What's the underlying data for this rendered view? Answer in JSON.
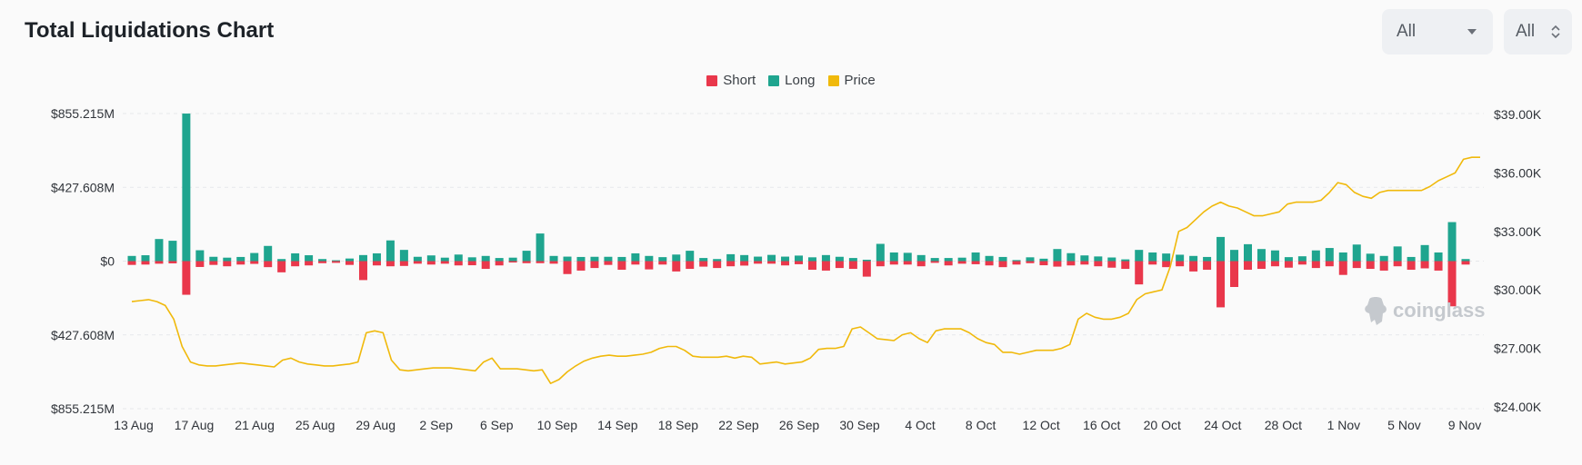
{
  "header": {
    "title": "Total Liquidations Chart",
    "range_select": "All",
    "coin_select": "All"
  },
  "legend": [
    {
      "label": "Short",
      "color": "#e9374b"
    },
    {
      "label": "Long",
      "color": "#1fa58f"
    },
    {
      "label": "Price",
      "color": "#f0b90b"
    }
  ],
  "watermark": "coinglass",
  "chart_data": {
    "type": "bar",
    "x_tick_labels": [
      "13 Aug",
      "17 Aug",
      "21 Aug",
      "25 Aug",
      "29 Aug",
      "2 Sep",
      "6 Sep",
      "10 Sep",
      "14 Sep",
      "18 Sep",
      "22 Sep",
      "26 Sep",
      "30 Sep",
      "4 Oct",
      "8 Oct",
      "12 Oct",
      "16 Oct",
      "20 Oct",
      "24 Oct",
      "28 Oct",
      "1 Nov",
      "5 Nov",
      "9 Nov"
    ],
    "y_left_tick_labels": [
      "$855.215M",
      "$427.608M",
      "$0",
      "$427.608M",
      "$855.215M"
    ],
    "y_left_range_musd": [
      -855.215,
      855.215
    ],
    "y_right_tick_labels": [
      "$39.00K",
      "$36.00K",
      "$33.00K",
      "$30.00K",
      "$27.00K",
      "$24.00K"
    ],
    "y_right_range_usd": [
      24000,
      39000
    ],
    "grid": true,
    "legend_position": "top-center",
    "series": [
      {
        "name": "Long",
        "color": "#1fa58f",
        "values": [
          30,
          34,
          128,
          118,
          855,
          63,
          25,
          20,
          24,
          47,
          88,
          12,
          45,
          34,
          12,
          5,
          15,
          35,
          45,
          120,
          65,
          25,
          33,
          20,
          38,
          22,
          30,
          18,
          20,
          60,
          160,
          30,
          26,
          24,
          25,
          25,
          24,
          45,
          30,
          23,
          38,
          60,
          18,
          12,
          40,
          35,
          26,
          36,
          26,
          32,
          22,
          35,
          25,
          18,
          8,
          100,
          50,
          48,
          35,
          18,
          18,
          20,
          50,
          30,
          24,
          6,
          22,
          14,
          70,
          46,
          33,
          27,
          21,
          10,
          65,
          50,
          44,
          37,
          30,
          24,
          140,
          65,
          98,
          70,
          62,
          23,
          28,
          62,
          76,
          50,
          96,
          43,
          30,
          85,
          24,
          93,
          50,
          226,
          12
        ]
      },
      {
        "name": "Short",
        "color": "#e9374b",
        "values": [
          22,
          20,
          15,
          13,
          195,
          34,
          22,
          30,
          20,
          16,
          35,
          65,
          30,
          25,
          12,
          10,
          22,
          110,
          25,
          30,
          28,
          15,
          20,
          15,
          25,
          24,
          45,
          25,
          8,
          12,
          12,
          15,
          75,
          55,
          40,
          22,
          50,
          20,
          48,
          20,
          60,
          45,
          32,
          40,
          30,
          26,
          15,
          15,
          25,
          18,
          50,
          55,
          40,
          45,
          90,
          30,
          20,
          20,
          30,
          10,
          25,
          15,
          18,
          25,
          35,
          20,
          12,
          24,
          32,
          25,
          20,
          30,
          38,
          45,
          135,
          20,
          35,
          30,
          60,
          50,
          268,
          150,
          50,
          45,
          30,
          38,
          20,
          40,
          30,
          80,
          40,
          45,
          55,
          30,
          50,
          42,
          55,
          262,
          20
        ]
      },
      {
        "name": "Price",
        "color": "#f0b90b",
        "values": [
          29400,
          29450,
          29500,
          29400,
          29200,
          28500,
          27100,
          26300,
          26150,
          26100,
          26100,
          26150,
          26200,
          26250,
          26200,
          26150,
          26100,
          26050,
          26400,
          26500,
          26300,
          26200,
          26150,
          26100,
          26100,
          26150,
          26200,
          26300,
          27800,
          27900,
          27800,
          26400,
          25900,
          25850,
          25900,
          25950,
          26000,
          26000,
          26000,
          25950,
          25900,
          25850,
          26300,
          26500,
          25950,
          25950,
          25950,
          25900,
          25850,
          25900,
          25200,
          25400,
          25800,
          26100,
          26350,
          26500,
          26600,
          26650,
          26600,
          26600,
          26650,
          26700,
          26800,
          27000,
          27100,
          27100,
          26900,
          26600,
          26550,
          26550,
          26550,
          26600,
          26500,
          26600,
          26550,
          26200,
          26250,
          26300,
          26200,
          26250,
          26300,
          26500,
          26950,
          27000,
          27000,
          27100,
          28000,
          28100,
          27800,
          27500,
          27450,
          27400,
          27700,
          27800,
          27500,
          27300,
          27900,
          28000,
          28000,
          28000,
          27800,
          27500,
          27300,
          27200,
          26800,
          26800,
          26700,
          26800,
          26900,
          26900,
          26900,
          27000,
          27200,
          28500,
          28800,
          28600,
          28500,
          28500,
          28600,
          28800,
          29500,
          29800,
          29900,
          30000,
          31200,
          33000,
          33200,
          33600,
          34000,
          34300,
          34500,
          34300,
          34200,
          34000,
          33800,
          33800,
          33900,
          34000,
          34400,
          34500,
          34500,
          34500,
          34600,
          35000,
          35500,
          35400,
          35000,
          34800,
          34700,
          35000,
          35100,
          35100,
          35100,
          35100,
          35100,
          35300,
          35600,
          35800,
          36000,
          36700,
          36800,
          36800
        ]
      }
    ]
  }
}
